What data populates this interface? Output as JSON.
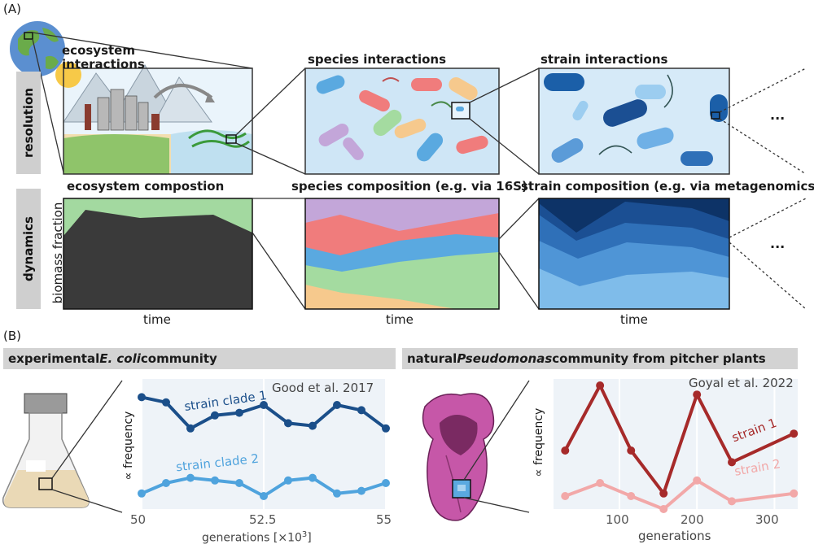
{
  "panel_a": {
    "letter": "(A)",
    "row_resolution": "resolution",
    "row_dynamics": "dynamics",
    "y_axis": "biomass fraction",
    "x_axis": "time",
    "titles": {
      "ecosystem": "ecosystem\ninteractions",
      "species": "species interactions",
      "strain": "strain interactions",
      "eco_comp": "ecosystem compostion",
      "species_comp": "species composition (e.g. via 16S)",
      "strain_comp": "strain composition (e.g. via metagenomics)"
    },
    "ellipsis": "...",
    "colors": {
      "eco_green": "#9fd89a",
      "eco_dark": "#3a3a3a",
      "species": [
        "#f6c98d",
        "#a4dba0",
        "#5aa9e0",
        "#f07c7c",
        "#c3a6d9"
      ],
      "strain": [
        "#7fbcea",
        "#4f95d6",
        "#2f70b8",
        "#1b4f93",
        "#0d3367"
      ]
    }
  },
  "panel_b": {
    "letter": "(B)",
    "left": {
      "title_pre": "experimental ",
      "title_italic": "E. coli",
      "title_post": " community",
      "citation": "Good et al. 2017",
      "ylabel": "∝ frequency",
      "xlabel": "generations [×10",
      "xlabel_sup": "3",
      "xlabel_close": "]",
      "xticks": [
        "50",
        "52.5",
        "55"
      ]
    },
    "right": {
      "title_pre": "natural ",
      "title_italic": "Pseudomonas",
      "title_post": " community from pitcher plants",
      "citation": "Goyal et al. 2022",
      "ylabel": "∝ frequency",
      "xlabel": "generations",
      "xticks": [
        "100",
        "200",
        "300"
      ]
    }
  },
  "chart_data": [
    {
      "type": "line",
      "title": "",
      "xlabel": "generations [×10^3]",
      "ylabel": "∝ frequency",
      "xlim": [
        50,
        55
      ],
      "series": [
        {
          "name": "strain clade 1",
          "color": "#1b4f8a",
          "x": [
            50,
            50.5,
            51,
            51.5,
            52,
            52.5,
            53,
            53.5,
            54,
            54.5,
            55
          ],
          "values": [
            0.86,
            0.82,
            0.62,
            0.72,
            0.74,
            0.8,
            0.66,
            0.64,
            0.8,
            0.76,
            0.62
          ]
        },
        {
          "name": "strain clade 2",
          "color": "#4fa3dd",
          "x": [
            50,
            50.5,
            51,
            51.5,
            52,
            52.5,
            53,
            53.5,
            54,
            54.5,
            55
          ],
          "values": [
            0.12,
            0.2,
            0.24,
            0.22,
            0.2,
            0.1,
            0.22,
            0.24,
            0.12,
            0.14,
            0.2
          ]
        }
      ]
    },
    {
      "type": "line",
      "title": "",
      "xlabel": "generations",
      "ylabel": "∝ frequency",
      "xlim": [
        15,
        330
      ],
      "series": [
        {
          "name": "strain 1",
          "color": "#a62a2a",
          "x": [
            30,
            75,
            115,
            157,
            200,
            245,
            325
          ],
          "values": [
            0.45,
            0.95,
            0.45,
            0.12,
            0.88,
            0.36,
            0.58
          ]
        },
        {
          "name": "strain 2",
          "color": "#f2a8a8",
          "x": [
            30,
            75,
            115,
            157,
            200,
            245,
            325
          ],
          "values": [
            0.1,
            0.2,
            0.1,
            0.0,
            0.22,
            0.06,
            0.12
          ]
        }
      ]
    }
  ]
}
